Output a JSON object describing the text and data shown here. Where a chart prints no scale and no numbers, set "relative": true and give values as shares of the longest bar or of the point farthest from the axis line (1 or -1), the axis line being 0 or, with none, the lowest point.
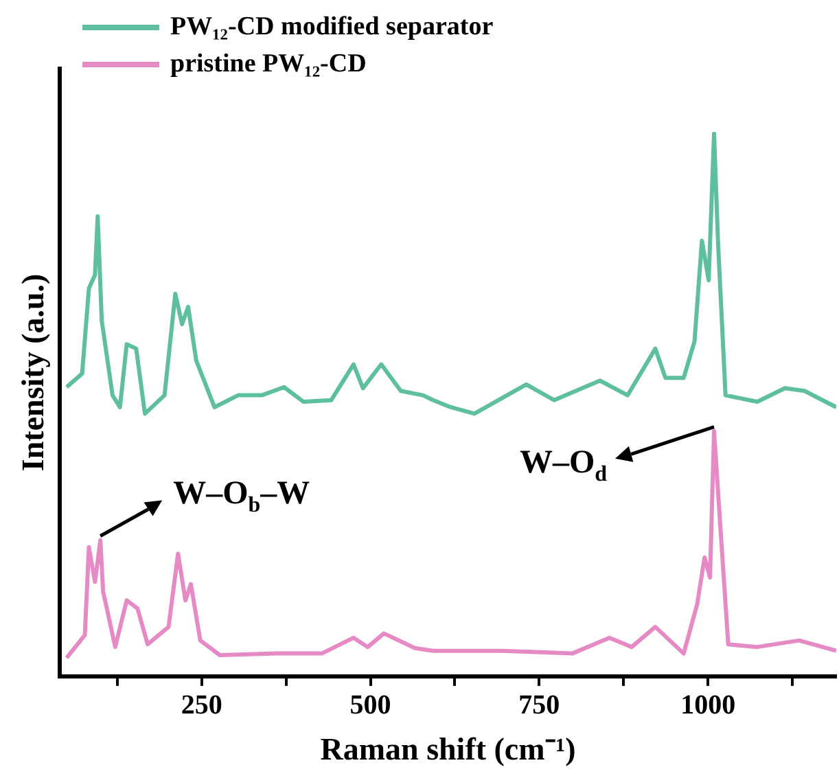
{
  "chart_data": {
    "type": "line",
    "xlabel": "Raman shift (cm⁻¹)",
    "ylabel": "Intensity (a.u.)",
    "relative": true,
    "xlim": [
      40,
      1190
    ],
    "xticks": [
      {
        "value": 125,
        "label": null
      },
      250,
      {
        "value": 375,
        "label": null
      },
      500,
      {
        "value": 625,
        "label": null
      },
      750,
      {
        "value": 875,
        "label": null
      },
      1000,
      {
        "value": 1125,
        "label": null
      }
    ],
    "grid": false,
    "legend": "top left",
    "marker": "none",
    "line_style": "solid",
    "annotations": [
      {
        "text": "W–O$_{b}$–W",
        "x": 100,
        "y": 0.251
      },
      {
        "text": "W–O$_{d}$",
        "x": 1009,
        "y": 0.452
      }
    ],
    "series": [
      {
        "name": "PW₁₂-CD modified separator",
        "color": "#5dbf9b",
        "x": [
          50,
          73,
          83,
          92,
          96,
          102,
          118,
          129,
          139,
          153,
          166,
          195,
          211,
          221,
          230,
          242,
          269,
          304,
          339,
          372,
          401,
          442,
          475,
          489,
          516,
          545,
          578,
          593,
          619,
          654,
          731,
          772,
          840,
          881,
          922,
          937,
          964,
          980,
          991,
          1001,
          1009,
          1015,
          1026,
          1073,
          1114,
          1143,
          1190
        ],
        "values": [
          0.533,
          0.558,
          0.715,
          0.74,
          0.848,
          0.656,
          0.518,
          0.496,
          0.612,
          0.604,
          0.484,
          0.518,
          0.705,
          0.649,
          0.681,
          0.582,
          0.496,
          0.518,
          0.518,
          0.533,
          0.506,
          0.509,
          0.575,
          0.531,
          0.575,
          0.526,
          0.518,
          0.509,
          0.496,
          0.484,
          0.538,
          0.509,
          0.545,
          0.518,
          0.604,
          0.55,
          0.55,
          0.617,
          0.803,
          0.73,
          1,
          0.796,
          0.518,
          0.506,
          0.531,
          0.526,
          0.496
        ]
      },
      {
        "name": "pristine PW₁₂-CD",
        "color": "#e68ac6",
        "x": [
          50,
          77,
          83,
          92,
          100,
          104,
          122,
          139,
          155,
          170,
          201,
          215,
          226,
          234,
          248,
          277,
          360,
          428,
          475,
          496,
          520,
          566,
          593,
          696,
          799,
          854,
          887,
          922,
          964,
          984,
          995,
          1003,
          1009,
          1019,
          1030,
          1073,
          1135,
          1190
        ],
        "values": [
          0.034,
          0.076,
          0.238,
          0.174,
          0.251,
          0.157,
          0.054,
          0.14,
          0.125,
          0.059,
          0.091,
          0.226,
          0.14,
          0.17,
          0.066,
          0.039,
          0.042,
          0.042,
          0.071,
          0.054,
          0.079,
          0.052,
          0.047,
          0.047,
          0.042,
          0.071,
          0.054,
          0.091,
          0.042,
          0.133,
          0.219,
          0.182,
          0.452,
          0.263,
          0.059,
          0.054,
          0.066,
          0.047
        ]
      }
    ]
  }
}
